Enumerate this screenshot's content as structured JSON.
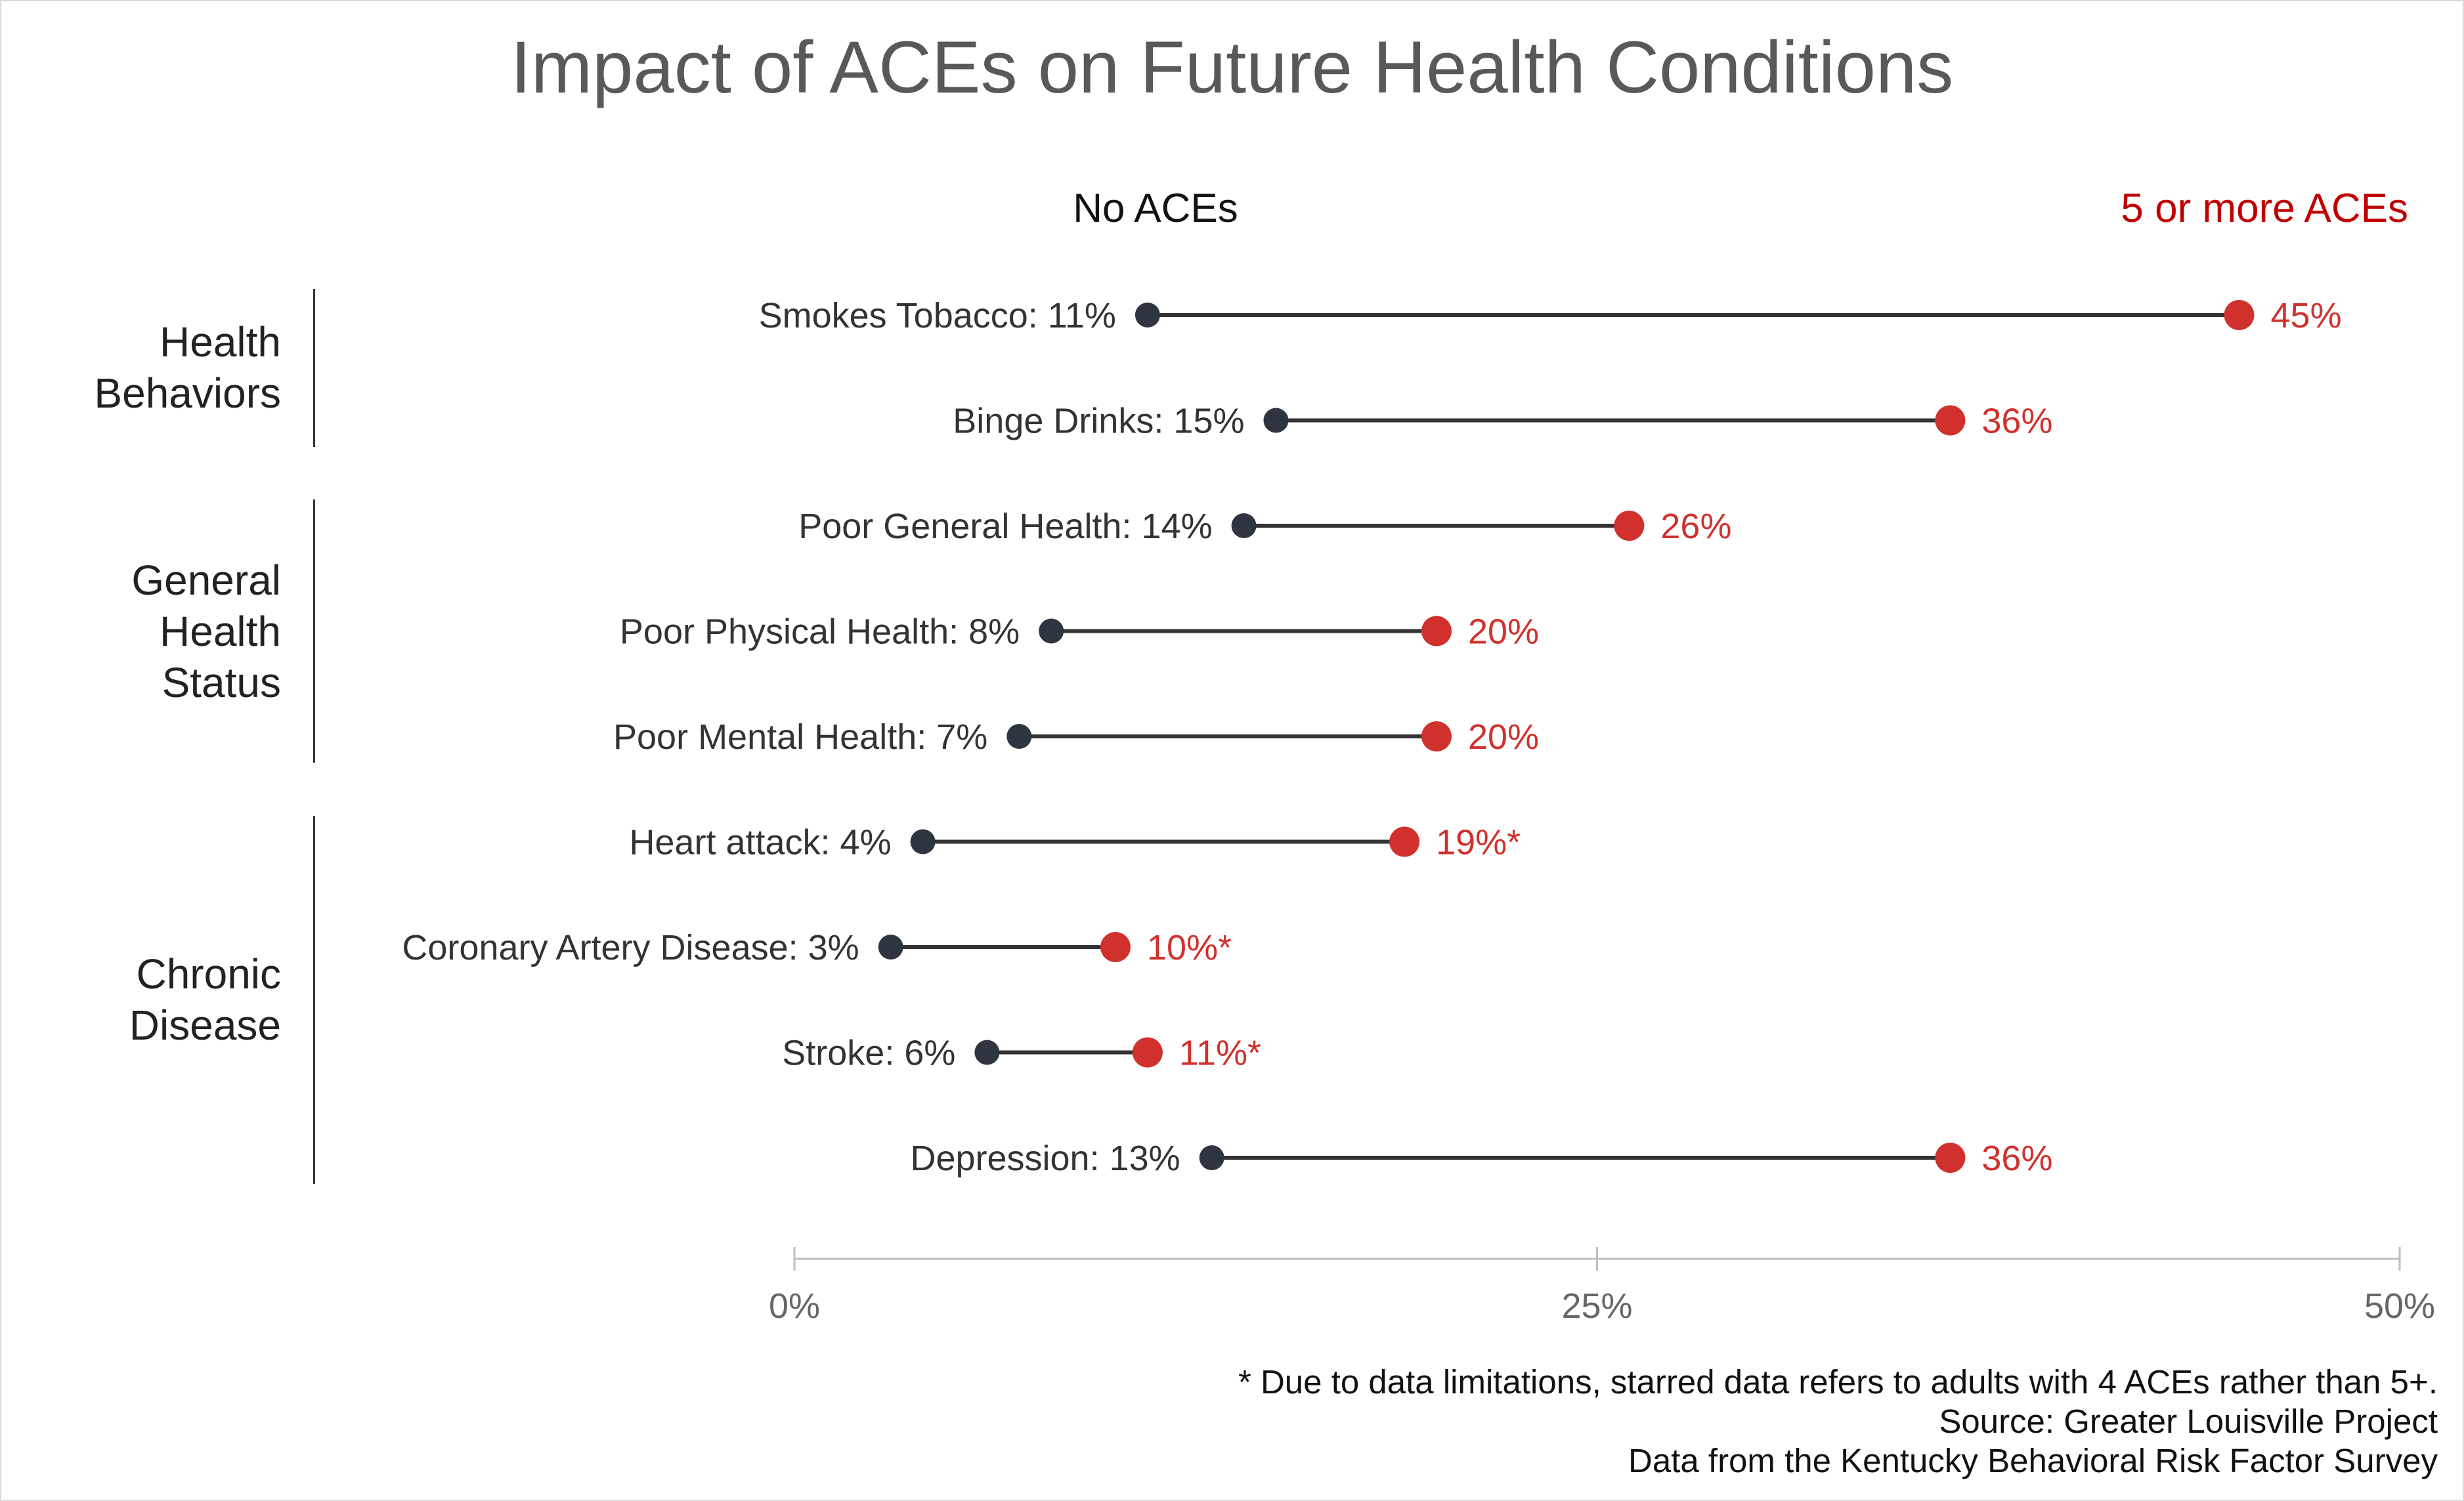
{
  "chart_data": {
    "type": "dumbbell",
    "title": "Impact of ACEs on Future Health Conditions",
    "legend": {
      "low": "No ACEs",
      "high": "5 or more ACEs"
    },
    "groups": [
      {
        "name": "Health\nBehaviors",
        "first": 0,
        "last": 1
      },
      {
        "name": "General\nHealth\nStatus",
        "first": 2,
        "last": 4
      },
      {
        "name": "Chronic\nDisease",
        "first": 5,
        "last": 8
      }
    ],
    "rows": [
      {
        "label": "Smokes Tobacco: 11%",
        "low": 11,
        "high": 45,
        "high_label": "45%"
      },
      {
        "label": "Binge Drinks: 15%",
        "low": 15,
        "high": 36,
        "high_label": "36%"
      },
      {
        "label": "Poor General Health: 14%",
        "low": 14,
        "high": 26,
        "high_label": "26%"
      },
      {
        "label": "Poor Physical Health: 8%",
        "low": 8,
        "high": 20,
        "high_label": "20%"
      },
      {
        "label": "Poor Mental Health: 7%",
        "low": 7,
        "high": 20,
        "high_label": "20%"
      },
      {
        "label": "Heart attack: 4%",
        "low": 4,
        "high": 19,
        "high_label": "19%*"
      },
      {
        "label": "Coronary Artery Disease: 3%",
        "low": 3,
        "high": 10,
        "high_label": "10%*"
      },
      {
        "label": "Stroke: 6%",
        "low": 6,
        "high": 11,
        "high_label": "11%*"
      },
      {
        "label": "Depression: 13%",
        "low": 13,
        "high": 36,
        "high_label": "36%"
      }
    ],
    "x_ticks": [
      {
        "value": 0,
        "label": "0%"
      },
      {
        "value": 25,
        "label": "25%"
      },
      {
        "value": 50,
        "label": "50%"
      }
    ],
    "xlim": [
      0,
      50
    ],
    "colors": {
      "low": "#2e3440",
      "high": "#d0312d",
      "line": "#333333",
      "axis": "#bfbfbf"
    }
  },
  "footnotes": [
    "* Due to data limitations, starred data refers to adults with 4 ACEs rather than 5+.",
    "Source: Greater Louisville Project",
    "Data from the Kentucky Behavioral Risk Factor Survey"
  ]
}
